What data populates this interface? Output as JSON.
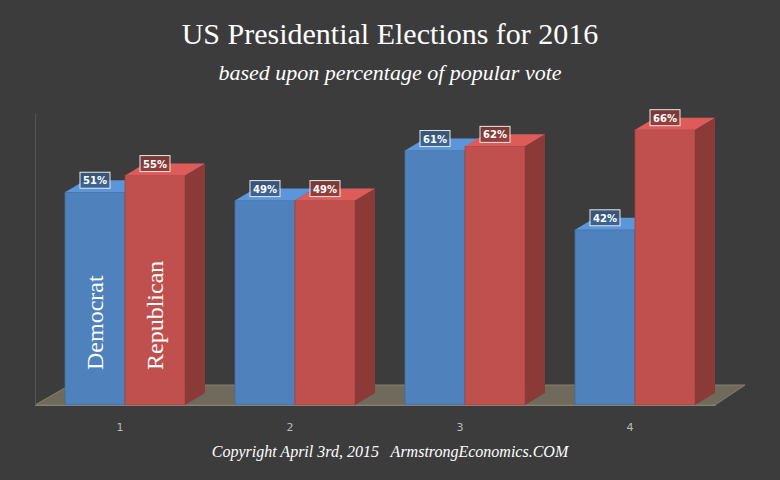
{
  "chart_data": {
    "type": "bar",
    "title": "US Presidential Elections for 2016",
    "subtitle": "based upon percentage of popular vote",
    "annotation": "Copyright April 3rd, 2015   ArmstrongEconomics.COM",
    "categories": [
      "1",
      "2",
      "3",
      "4"
    ],
    "series": [
      {
        "name": "Democrat",
        "color": "#4f81bd",
        "values": [
          51,
          49,
          61,
          42
        ],
        "value_labels": [
          "51%",
          "49%",
          "61%",
          "42%"
        ]
      },
      {
        "name": "Republican",
        "color": "#c0504d",
        "values": [
          55,
          49,
          62,
          66
        ],
        "value_labels": [
          "55%",
          "49%",
          "62%",
          "66%"
        ]
      }
    ],
    "ylim": [
      0,
      70
    ],
    "data_labels": true,
    "tick_labels": "x"
  }
}
